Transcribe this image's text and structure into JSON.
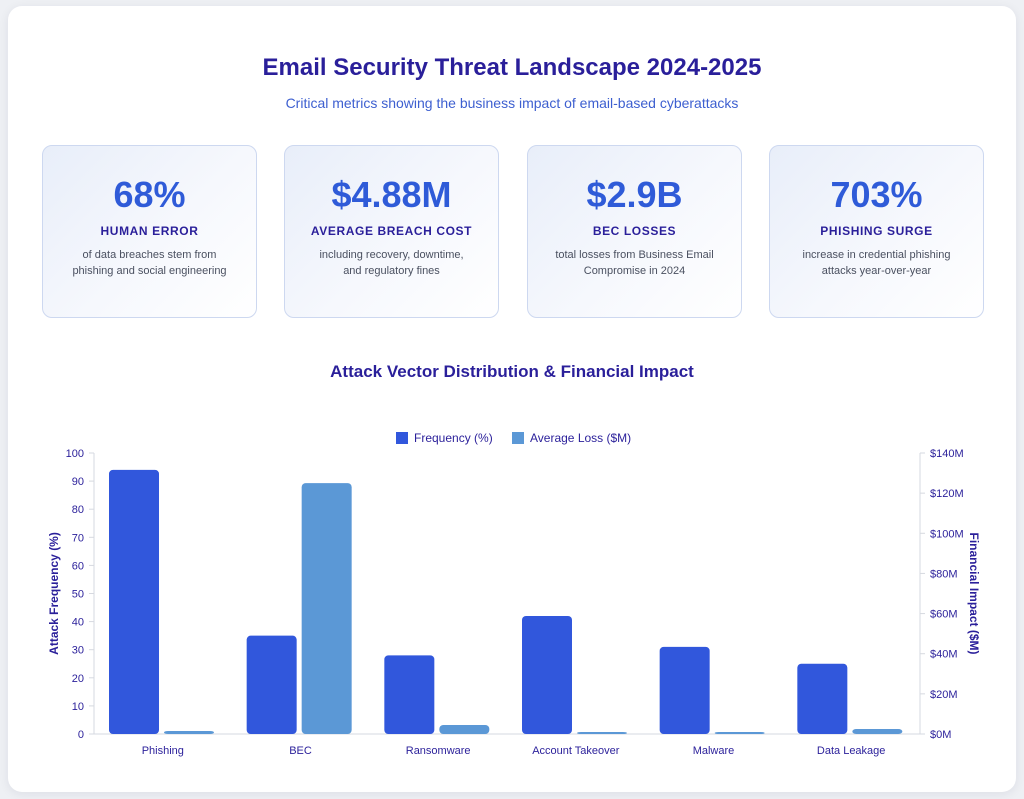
{
  "header": {
    "title": "Email Security Threat Landscape 2024-2025",
    "subtitle": "Critical metrics showing the business impact of email-based cyberattacks"
  },
  "stats": [
    {
      "value": "68%",
      "label": "HUMAN ERROR",
      "description": "of data breaches stem from phishing and social engineering"
    },
    {
      "value": "$4.88M",
      "label": "AVERAGE BREACH COST",
      "description": "including recovery, downtime, and regulatory fines"
    },
    {
      "value": "$2.9B",
      "label": "BEC LOSSES",
      "description": "total losses from Business Email Compromise in 2024"
    },
    {
      "value": "703%",
      "label": "PHISHING SURGE",
      "description": "increase in credential phishing attacks year-over-year"
    }
  ],
  "chart_title": "Attack Vector Distribution & Financial Impact",
  "colors": {
    "frequency": "#3157dc",
    "loss": "#5b98d6",
    "title": "#2a1f9a",
    "accent": "#2f5bd8"
  },
  "chart_data": {
    "type": "bar",
    "title": "Attack Vector Distribution & Financial Impact",
    "categories": [
      "Phishing",
      "BEC",
      "Ransomware",
      "Account Takeover",
      "Malware",
      "Data Leakage"
    ],
    "series": [
      {
        "name": "Frequency (%)",
        "axis": "left",
        "values": [
          94,
          35,
          28,
          42,
          31,
          25
        ]
      },
      {
        "name": "Average Loss ($M)",
        "axis": "right",
        "values": [
          1.5,
          125,
          4.5,
          1,
          1,
          2.5
        ]
      }
    ],
    "ylabel": "Attack Frequency (%)",
    "ylim": [
      0,
      100
    ],
    "yticks": [
      "0",
      "10",
      "20",
      "30",
      "40",
      "50",
      "60",
      "70",
      "80",
      "90",
      "100"
    ],
    "y2label": "Financial Impact ($M)",
    "y2lim": [
      0,
      140
    ],
    "y2ticks": [
      "$0M",
      "$20M",
      "$40M",
      "$60M",
      "$80M",
      "$100M",
      "$120M",
      "$140M"
    ],
    "legend": "top-center",
    "grid": false
  }
}
